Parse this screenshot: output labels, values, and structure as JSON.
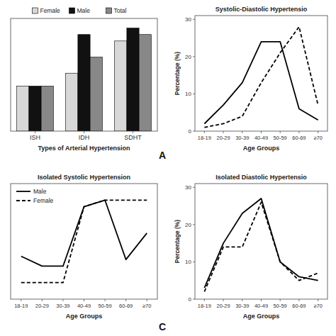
{
  "chart_data": [
    {
      "type": "bar",
      "xlabel": "Types of Arterial Hypertension",
      "categories": [
        "ISH",
        "IDH",
        "SDHT"
      ],
      "series": [
        {
          "name": "Female",
          "color": "#d8d8d8",
          "values": [
            14,
            18,
            28
          ]
        },
        {
          "name": "Male",
          "color": "#111111",
          "values": [
            14,
            30,
            32
          ]
        },
        {
          "name": "Total",
          "color": "#888888",
          "values": [
            14,
            23,
            30
          ]
        }
      ],
      "ylim": [
        0,
        35
      ],
      "tick_labels": "x",
      "legend": "top",
      "annotations": [
        "A"
      ]
    },
    {
      "type": "line",
      "title": "Systolic-Diastolic Hypertensio",
      "xlabel": "Age Groups",
      "ylabel": "Percentage (%)",
      "categories": [
        "18-19",
        "20-29",
        "30-39",
        "40-49",
        "50-59",
        "60-69",
        "≥70"
      ],
      "series": [
        {
          "color": "#000000",
          "line_style": "solid",
          "values": [
            2,
            7,
            13,
            24,
            24,
            6,
            3
          ]
        },
        {
          "color": "#000000",
          "line_style": "dashed",
          "values": [
            1,
            2,
            4,
            13,
            21,
            28,
            7
          ]
        }
      ],
      "ylim": [
        0,
        31
      ],
      "yticks": [
        0,
        10,
        20,
        30
      ]
    },
    {
      "type": "line",
      "title": "Isolated Systolic Hypertension",
      "xlabel": "Age Groups",
      "categories": [
        "18-19",
        "20-29",
        "30-39",
        "40-49",
        "50-59",
        "60-69",
        "≥70"
      ],
      "series": [
        {
          "name": "Male",
          "color": "#000000",
          "line_style": "solid",
          "values": [
            13,
            10,
            10,
            28,
            30,
            12,
            20
          ]
        },
        {
          "name": "Female",
          "color": "#000000",
          "line_style": "dashed",
          "values": [
            5,
            5,
            5,
            28,
            30,
            30,
            30
          ]
        }
      ],
      "ylim": [
        0,
        35
      ],
      "tick_labels": "x",
      "legend": "upper left",
      "annotations": [
        "C"
      ]
    },
    {
      "type": "line",
      "title": "Isolated Diastolic Hypertensio",
      "xlabel": "Age Groups",
      "ylabel": "Percentage (%)",
      "categories": [
        "18-19",
        "20-29",
        "30-39",
        "40-49",
        "50-59",
        "60-69",
        "≥70"
      ],
      "series": [
        {
          "color": "#000000",
          "line_style": "solid",
          "values": [
            3,
            15,
            23,
            27,
            10,
            6,
            5
          ]
        },
        {
          "color": "#000000",
          "line_style": "dashed",
          "values": [
            2,
            14,
            14,
            26,
            10,
            5,
            7
          ]
        }
      ],
      "ylim": [
        0,
        31
      ],
      "yticks": [
        0,
        10,
        20,
        30
      ]
    }
  ]
}
